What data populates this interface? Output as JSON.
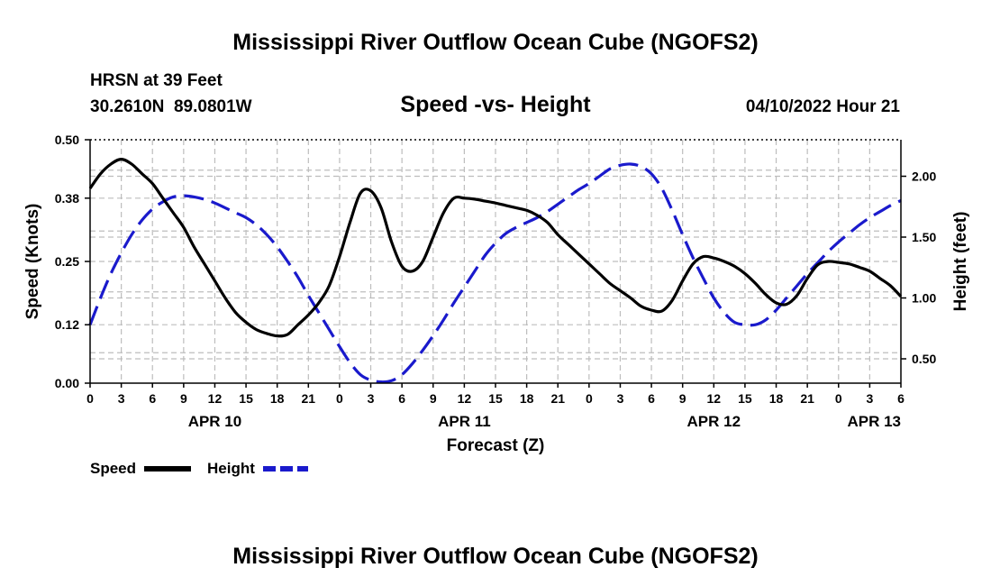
{
  "title": "Mississippi River Outflow Ocean Cube (NGOFS2)",
  "footer_title": "Mississippi River Outflow Ocean Cube (NGOFS2)",
  "station": {
    "name": "HRSN at 39 Feet",
    "coords": "30.2610N  89.0801W"
  },
  "forecast_time": "04/10/2022 Hour 21",
  "colors": {
    "speed": "#000000",
    "height": "#1a1acc",
    "grid": "#bdbdbd"
  },
  "chart_data": {
    "type": "line",
    "title": "Speed -vs- Height",
    "xlabel": "Forecast (Z)",
    "ylabel": "Speed (Knots)",
    "y2label": "Height (feet)",
    "xlim": [
      0,
      78
    ],
    "ylim": [
      0,
      0.5
    ],
    "y2lim": [
      0.3,
      2.3
    ],
    "grid": true,
    "legend_position": "bottom-left",
    "x_tick_hours": [
      0,
      3,
      6,
      9,
      12,
      15,
      18,
      21,
      24,
      27,
      30,
      33,
      36,
      39,
      42,
      45,
      48,
      51,
      54,
      57,
      60,
      63,
      66,
      69,
      72,
      75,
      78
    ],
    "x_tick_labels": [
      "0",
      "3",
      "6",
      "9",
      "12",
      "15",
      "18",
      "21",
      "0",
      "3",
      "6",
      "9",
      "12",
      "15",
      "18",
      "21",
      "0",
      "3",
      "6",
      "9",
      "12",
      "15",
      "18",
      "21",
      "0",
      "3",
      "6"
    ],
    "day_labels": [
      {
        "hour": 12,
        "text": "APR 10"
      },
      {
        "hour": 36,
        "text": "APR 11"
      },
      {
        "hour": 60,
        "text": "APR 12"
      },
      {
        "hour": 78,
        "text": "APR 13"
      }
    ],
    "y_ticks": [
      0.0,
      0.12,
      0.25,
      0.38,
      0.5
    ],
    "y_tick_labels": [
      "0.00",
      "0.12",
      "0.25",
      "0.38",
      "0.50"
    ],
    "y2_ticks": [
      0.5,
      1.0,
      1.5,
      2.0
    ],
    "y2_tick_labels": [
      "0.50",
      "1.00",
      "1.50",
      "2.00"
    ],
    "series": [
      {
        "name": "Speed",
        "axis": "left",
        "style": "solid",
        "x": [
          0,
          1,
          2,
          3,
          4,
          5,
          6,
          7,
          8,
          9,
          10,
          11,
          12,
          13,
          14,
          15,
          16,
          17,
          18,
          19,
          20,
          21,
          22,
          23,
          24,
          25,
          26,
          27,
          28,
          29,
          30,
          31,
          32,
          33,
          34,
          35,
          36,
          37,
          38,
          39,
          40,
          41,
          42,
          43,
          44,
          45,
          46,
          47,
          48,
          49,
          50,
          51,
          52,
          53,
          54,
          55,
          56,
          57,
          58,
          59,
          60,
          61,
          62,
          63,
          64,
          65,
          66,
          67,
          68,
          69,
          70,
          71,
          72,
          73,
          74,
          75,
          76,
          77,
          78
        ],
        "values": [
          0.4,
          0.43,
          0.45,
          0.46,
          0.45,
          0.43,
          0.41,
          0.38,
          0.35,
          0.32,
          0.28,
          0.245,
          0.21,
          0.175,
          0.145,
          0.125,
          0.11,
          0.102,
          0.097,
          0.1,
          0.12,
          0.14,
          0.165,
          0.2,
          0.26,
          0.33,
          0.39,
          0.395,
          0.36,
          0.29,
          0.24,
          0.23,
          0.25,
          0.3,
          0.35,
          0.38,
          0.38,
          0.378,
          0.374,
          0.37,
          0.365,
          0.36,
          0.355,
          0.345,
          0.33,
          0.305,
          0.285,
          0.265,
          0.245,
          0.225,
          0.205,
          0.19,
          0.175,
          0.158,
          0.15,
          0.148,
          0.17,
          0.21,
          0.245,
          0.26,
          0.257,
          0.25,
          0.24,
          0.225,
          0.205,
          0.182,
          0.165,
          0.162,
          0.18,
          0.215,
          0.243,
          0.25,
          0.248,
          0.245,
          0.238,
          0.23,
          0.215,
          0.2,
          0.178
        ]
      },
      {
        "name": "Height",
        "axis": "right",
        "style": "dashed",
        "x": [
          0,
          1,
          2,
          3,
          4,
          5,
          6,
          7,
          8,
          9,
          10,
          11,
          12,
          13,
          14,
          15,
          16,
          17,
          18,
          19,
          20,
          21,
          22,
          23,
          24,
          25,
          26,
          27,
          28,
          29,
          30,
          31,
          32,
          33,
          34,
          35,
          36,
          37,
          38,
          39,
          40,
          41,
          42,
          43,
          44,
          45,
          46,
          47,
          48,
          49,
          50,
          51,
          52,
          53,
          54,
          55,
          56,
          57,
          58,
          59,
          60,
          61,
          62,
          63,
          64,
          65,
          66,
          67,
          68,
          69,
          70,
          71,
          72,
          73,
          74,
          75,
          76,
          77,
          78
        ],
        "values": [
          0.78,
          1.0,
          1.2,
          1.37,
          1.52,
          1.64,
          1.73,
          1.79,
          1.83,
          1.84,
          1.83,
          1.81,
          1.78,
          1.74,
          1.7,
          1.66,
          1.6,
          1.52,
          1.42,
          1.3,
          1.17,
          1.02,
          0.88,
          0.74,
          0.6,
          0.47,
          0.37,
          0.325,
          0.31,
          0.32,
          0.37,
          0.46,
          0.57,
          0.69,
          0.82,
          0.96,
          1.09,
          1.22,
          1.35,
          1.45,
          1.53,
          1.58,
          1.62,
          1.66,
          1.71,
          1.77,
          1.83,
          1.89,
          1.94,
          2.0,
          2.06,
          2.09,
          2.1,
          2.08,
          2.02,
          1.9,
          1.72,
          1.52,
          1.33,
          1.16,
          1.0,
          0.88,
          0.8,
          0.78,
          0.78,
          0.82,
          0.9,
          1.0,
          1.1,
          1.2,
          1.29,
          1.38,
          1.46,
          1.53,
          1.6,
          1.66,
          1.71,
          1.76,
          1.8
        ]
      }
    ]
  }
}
